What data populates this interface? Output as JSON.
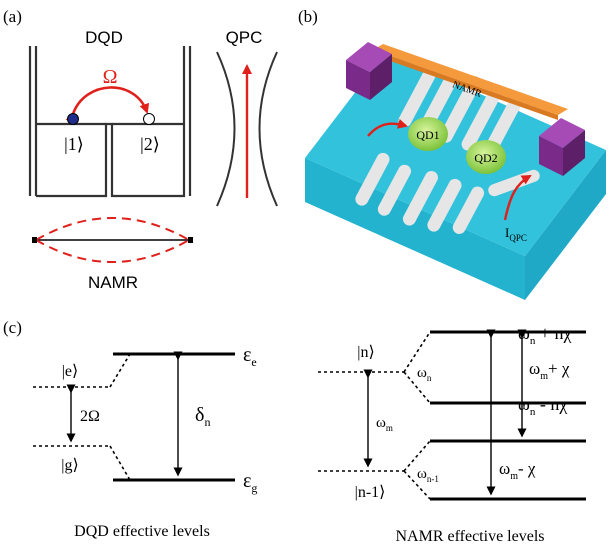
{
  "panels": {
    "a": {
      "tag": "(a)",
      "dqd_title": "DQD",
      "qpc_title": "QPC",
      "omega": "Ω",
      "ket1": "|1⟩",
      "ket2": "|2⟩",
      "namr_label": "NAMR",
      "colors": {
        "coupling": "#e0201b",
        "dot1": "#1f2c8c",
        "dot2": "#ffffff",
        "well": "#333333"
      }
    },
    "b": {
      "tag": "(b)",
      "namr_label": "NAMR",
      "qd1": "QD1",
      "qd2": "QD2",
      "current_main": "I",
      "current_sub": "QPC",
      "colors": {
        "substrate_top": "#33c2dc",
        "substrate_side": "#1fa9c6",
        "gate": "#e3e3e3",
        "beam": "#f59a3c",
        "contact": "#8b2e9a",
        "dot": "#93d44b"
      }
    },
    "c": {
      "tag": "(c)",
      "dqd": {
        "ket_e": "|e⟩",
        "ket_g": "|g⟩",
        "splitting": "2Ω",
        "eps_e": "ε",
        "eps_e_sub": "e",
        "eps_g": "ε",
        "eps_g_sub": "g",
        "delta": "δ",
        "delta_sub": "n",
        "caption": "DQD effective levels"
      },
      "namr": {
        "ket_n": "|n⟩",
        "ket_n1": "|n-1⟩",
        "omega_m": "ω",
        "omega_m_sub": "m",
        "omega_n": "ω",
        "omega_n_sub": "n",
        "omega_n1": "ω",
        "omega_n1_sub": "n-1",
        "top_main": "ω",
        "top_sub": "n",
        "top_rest": " + nχ",
        "mid_main": "ω",
        "mid_sub": "n",
        "mid_rest": " - nχ",
        "plus_main": "ω",
        "plus_sub": "m",
        "plus_rest": "+ χ",
        "minus_main": "ω",
        "minus_sub": "m",
        "minus_rest": "- χ",
        "caption": "NAMR effective levels"
      }
    }
  }
}
